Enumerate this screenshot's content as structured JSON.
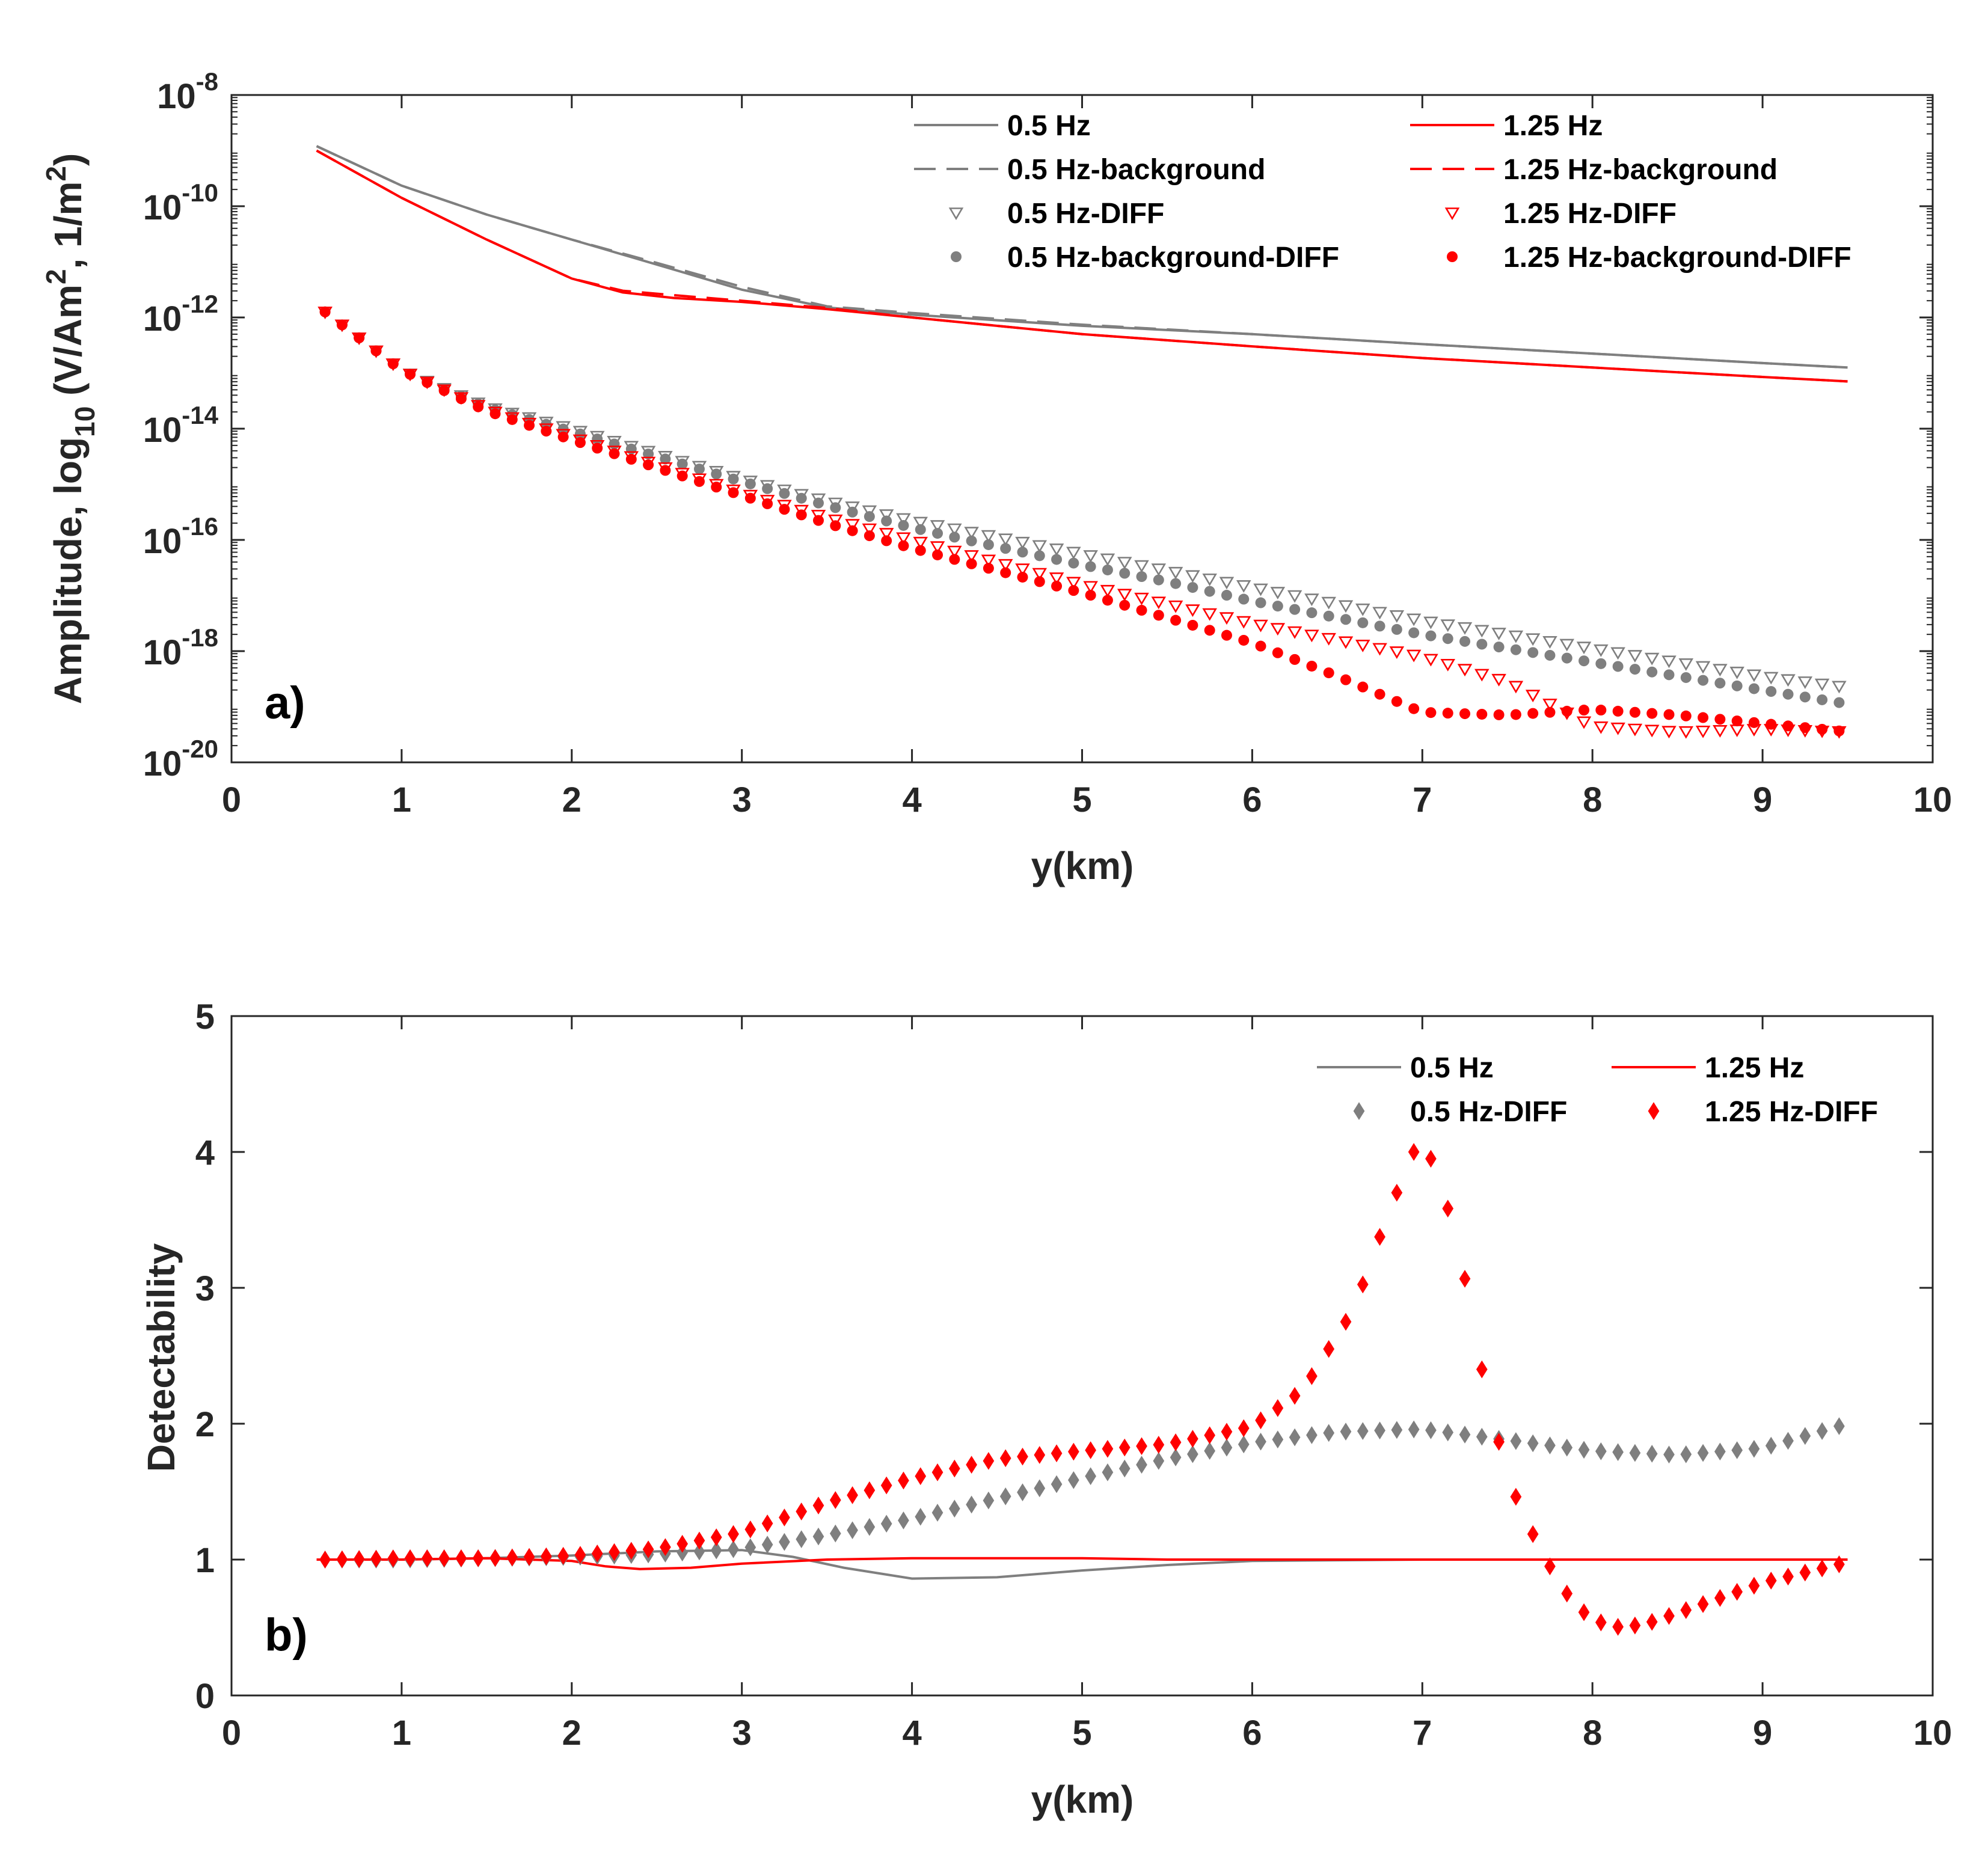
{
  "colors": {
    "gray": "#7f7f7f",
    "red": "#ff0000",
    "axis": "#262626"
  },
  "chart_data": [
    {
      "type": "line",
      "panel_label": "a)",
      "xlabel": "y(km)",
      "ylabel": "Amplitude, log10 (V/Am², 1/m²)",
      "ylabel_parts": {
        "pre": "Amplitude, log",
        "sub1": "10",
        "mid": " (V/Am",
        "sup1": "2",
        "mid2": ", 1/m",
        "sup2": "2",
        "post": ")"
      },
      "xlim": [
        0,
        10
      ],
      "ylim": [
        1e-20,
        1e-08
      ],
      "yscale": "log",
      "xticks": [
        "0",
        "1",
        "2",
        "3",
        "4",
        "5",
        "6",
        "7",
        "8",
        "9",
        "10"
      ],
      "yticks": [
        {
          "base": "10",
          "exp": "-20",
          "value": -20
        },
        {
          "base": "10",
          "exp": "-18",
          "value": -18
        },
        {
          "base": "10",
          "exp": "-16",
          "value": -16
        },
        {
          "base": "10",
          "exp": "-14",
          "value": -14
        },
        {
          "base": "10",
          "exp": "-12",
          "value": -12
        },
        {
          "base": "10",
          "exp": "-10",
          "value": -10
        },
        {
          "base": "10",
          "exp": "-8",
          "value": -8
        }
      ],
      "legend_position": "top-right",
      "series": [
        {
          "name": "0.5 Hz",
          "style": "line",
          "color": "#7f7f7f",
          "x": [
            0.5,
            1,
            1.5,
            2,
            2.5,
            3,
            3.5,
            4,
            5,
            6,
            7,
            8,
            9,
            9.5
          ],
          "log_y": [
            -8.92,
            -9.63,
            -10.15,
            -10.6,
            -11.05,
            -11.5,
            -11.82,
            -11.95,
            -12.15,
            -12.3,
            -12.48,
            -12.65,
            -12.82,
            -12.9
          ]
        },
        {
          "name": "0.5 Hz-background",
          "style": "dash",
          "color": "#7f7f7f",
          "x": [
            0.5,
            1,
            1.5,
            2,
            2.5,
            3,
            3.5,
            4,
            5,
            6,
            7,
            8,
            9,
            9.5
          ],
          "log_y": [
            -8.92,
            -9.63,
            -10.15,
            -10.6,
            -11.02,
            -11.45,
            -11.8,
            -11.92,
            -12.13,
            -12.3,
            -12.48,
            -12.65,
            -12.82,
            -12.9
          ]
        },
        {
          "name": "1.25 Hz",
          "style": "line",
          "color": "#ff0000",
          "x": [
            0.5,
            1,
            1.5,
            2,
            2.3,
            2.6,
            3,
            3.5,
            4,
            5,
            6,
            7,
            8,
            9,
            9.5
          ],
          "log_y": [
            -9.0,
            -9.85,
            -10.6,
            -11.3,
            -11.55,
            -11.65,
            -11.72,
            -11.85,
            -12.0,
            -12.3,
            -12.52,
            -12.73,
            -12.9,
            -13.07,
            -13.15
          ]
        },
        {
          "name": "1.25 Hz-background",
          "style": "dash",
          "color": "#ff0000",
          "x": [
            0.5,
            1,
            1.5,
            2,
            2.3,
            2.6,
            3,
            3.5,
            4,
            5,
            6,
            7,
            8,
            9,
            9.5
          ],
          "log_y": [
            -9.0,
            -9.85,
            -10.6,
            -11.3,
            -11.52,
            -11.6,
            -11.7,
            -11.83,
            -12.0,
            -12.3,
            -12.52,
            -12.73,
            -12.9,
            -13.07,
            -13.15
          ]
        },
        {
          "name": "0.5 Hz-DIFF",
          "style": "triangle",
          "color": "#7f7f7f",
          "x": [
            0.55,
            1,
            1.5,
            2,
            2.5,
            3,
            3.5,
            4,
            4.5,
            5,
            5.5,
            6,
            6.5,
            7,
            7.5,
            8,
            8.5,
            9,
            9.5
          ],
          "log_y": [
            -11.9,
            -12.95,
            -13.6,
            -14.0,
            -14.45,
            -14.9,
            -15.3,
            -15.65,
            -15.95,
            -16.25,
            -16.55,
            -16.85,
            -17.15,
            -17.45,
            -17.7,
            -17.95,
            -18.2,
            -18.45,
            -18.65
          ]
        },
        {
          "name": "0.5 Hz-background-DIFF",
          "style": "dot",
          "color": "#7f7f7f",
          "x": [
            0.55,
            1,
            1.5,
            2,
            2.5,
            3,
            3.5,
            4,
            4.5,
            5,
            5.5,
            6,
            6.5,
            7,
            7.5,
            8,
            8.5,
            9,
            9.5
          ],
          "log_y": [
            -11.9,
            -12.95,
            -13.62,
            -14.05,
            -14.5,
            -14.95,
            -15.38,
            -15.78,
            -16.12,
            -16.45,
            -16.75,
            -17.1,
            -17.4,
            -17.7,
            -17.95,
            -18.2,
            -18.45,
            -18.7,
            -18.95
          ]
        },
        {
          "name": "1.25 Hz-DIFF",
          "style": "triangle",
          "color": "#ff0000",
          "x": [
            0.55,
            1,
            1.5,
            2,
            2.5,
            3,
            3.5,
            4,
            4.5,
            5,
            5.5,
            6,
            6.5,
            7,
            7.5,
            8,
            8.5,
            9,
            9.5
          ],
          "log_y": [
            -11.9,
            -12.95,
            -13.65,
            -14.15,
            -14.65,
            -15.15,
            -15.6,
            -16.0,
            -16.4,
            -16.8,
            -17.15,
            -17.5,
            -17.8,
            -18.1,
            -18.55,
            -19.35,
            -19.45,
            -19.4,
            -19.45
          ]
        },
        {
          "name": "1.25 Hz-background-DIFF",
          "style": "dot",
          "color": "#ff0000",
          "x": [
            0.55,
            1,
            1.5,
            2,
            2.5,
            3,
            3.5,
            4,
            4.5,
            5,
            5.5,
            6,
            6.5,
            7,
            7.5,
            8,
            8.5,
            9,
            9.5
          ],
          "log_y": [
            -11.9,
            -12.95,
            -13.68,
            -14.2,
            -14.7,
            -15.2,
            -15.7,
            -16.15,
            -16.55,
            -16.95,
            -17.4,
            -17.85,
            -18.45,
            -19.1,
            -19.15,
            -19.05,
            -19.15,
            -19.3,
            -19.45
          ]
        }
      ]
    },
    {
      "type": "line",
      "panel_label": "b)",
      "xlabel": "y(km)",
      "ylabel": "Detectability",
      "xlim": [
        0,
        10
      ],
      "ylim": [
        0,
        5
      ],
      "xticks": [
        "0",
        "1",
        "2",
        "3",
        "4",
        "5",
        "6",
        "7",
        "8",
        "9",
        "10"
      ],
      "yticks": [
        "0",
        "1",
        "2",
        "3",
        "4",
        "5"
      ],
      "legend_position": "top-right",
      "series": [
        {
          "name": "0.5 Hz",
          "style": "line",
          "color": "#7f7f7f",
          "x": [
            0.5,
            1,
            1.5,
            2,
            2.5,
            3,
            3.3,
            3.6,
            4,
            4.5,
            5,
            5.5,
            6,
            7,
            8,
            9,
            9.5
          ],
          "y": [
            1,
            1,
            1.01,
            1.03,
            1.06,
            1.07,
            1.02,
            0.94,
            0.86,
            0.87,
            0.92,
            0.96,
            0.99,
            1,
            1,
            1,
            1
          ]
        },
        {
          "name": "1.25 Hz",
          "style": "line",
          "color": "#ff0000",
          "x": [
            0.5,
            1,
            1.5,
            2,
            2.2,
            2.4,
            2.7,
            3,
            3.5,
            4,
            4.5,
            5,
            5.5,
            6,
            7,
            8,
            9,
            9.5
          ],
          "y": [
            1,
            1,
            1.01,
            0.99,
            0.95,
            0.93,
            0.94,
            0.97,
            1.0,
            1.01,
            1.01,
            1.01,
            1.0,
            1.0,
            1.0,
            1.0,
            1.0,
            1.0
          ]
        },
        {
          "name": "0.5 Hz-DIFF",
          "style": "diamond",
          "color": "#7f7f7f",
          "x": [
            0.55,
            1,
            1.5,
            2,
            2.5,
            3,
            3.5,
            4,
            4.5,
            5,
            5.5,
            6,
            6.5,
            7,
            7.5,
            8,
            8.5,
            9,
            9.5
          ],
          "y": [
            1,
            1,
            1.01,
            1.02,
            1.04,
            1.08,
            1.18,
            1.3,
            1.45,
            1.6,
            1.74,
            1.86,
            1.94,
            1.96,
            1.88,
            1.8,
            1.77,
            1.82,
            2.0
          ]
        },
        {
          "name": "1.25 Hz-DIFF",
          "style": "diamond",
          "color": "#ff0000",
          "x": [
            0.55,
            1,
            1.5,
            2,
            2.5,
            3,
            3.5,
            4,
            4.5,
            5,
            5.5,
            6,
            6.3,
            6.6,
            6.8,
            6.95,
            7.05,
            7.2,
            7.35,
            7.5,
            7.7,
            7.9,
            8.1,
            8.3,
            8.6,
            9,
            9.5
          ],
          "y": [
            1,
            1.01,
            1.01,
            1.03,
            1.08,
            1.2,
            1.42,
            1.6,
            1.74,
            1.8,
            1.85,
            1.98,
            2.25,
            2.85,
            3.55,
            4.0,
            3.95,
            3.4,
            2.4,
            1.6,
            1.05,
            0.65,
            0.5,
            0.52,
            0.65,
            0.83,
            0.98
          ]
        }
      ]
    }
  ]
}
